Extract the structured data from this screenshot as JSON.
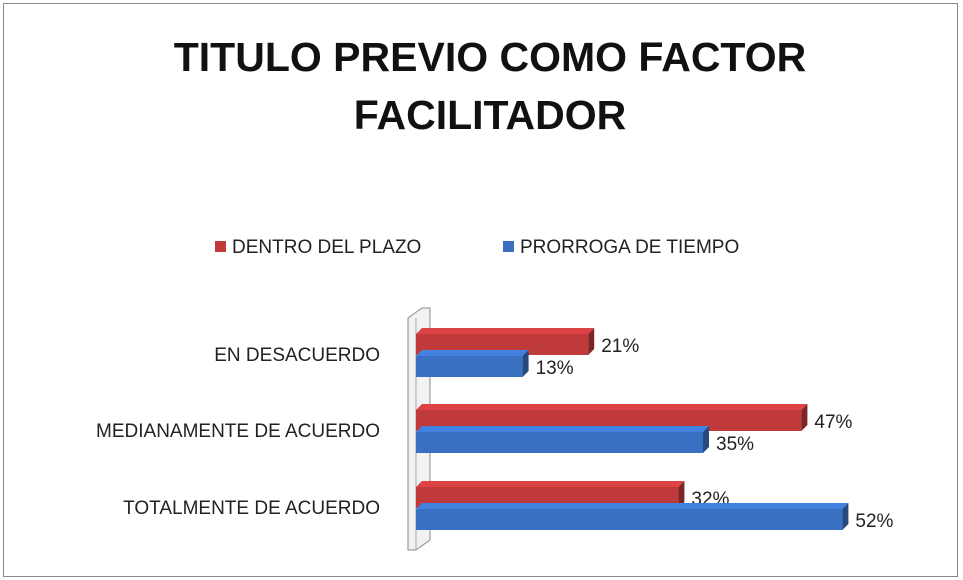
{
  "chart_data": {
    "type": "bar",
    "orientation": "horizontal",
    "title": "TITULO PREVIO COMO FACTOR FACILITADOR",
    "categories": [
      "EN DESACUERDO",
      "MEDIANAMENTE DE ACUERDO",
      "TOTALMENTE DE ACUERDO"
    ],
    "legend": "top",
    "series": [
      {
        "name": "DENTRO DEL PLAZO",
        "color": "#c0393b",
        "values": [
          21,
          47,
          32
        ],
        "value_labels": [
          "21%",
          "47%",
          "32%"
        ]
      },
      {
        "name": "PRORROGA DE TIEMPO",
        "color": "#3a70c2",
        "values": [
          13,
          35,
          52
        ],
        "value_labels": [
          "13%",
          "35%",
          "52%"
        ]
      }
    ]
  }
}
